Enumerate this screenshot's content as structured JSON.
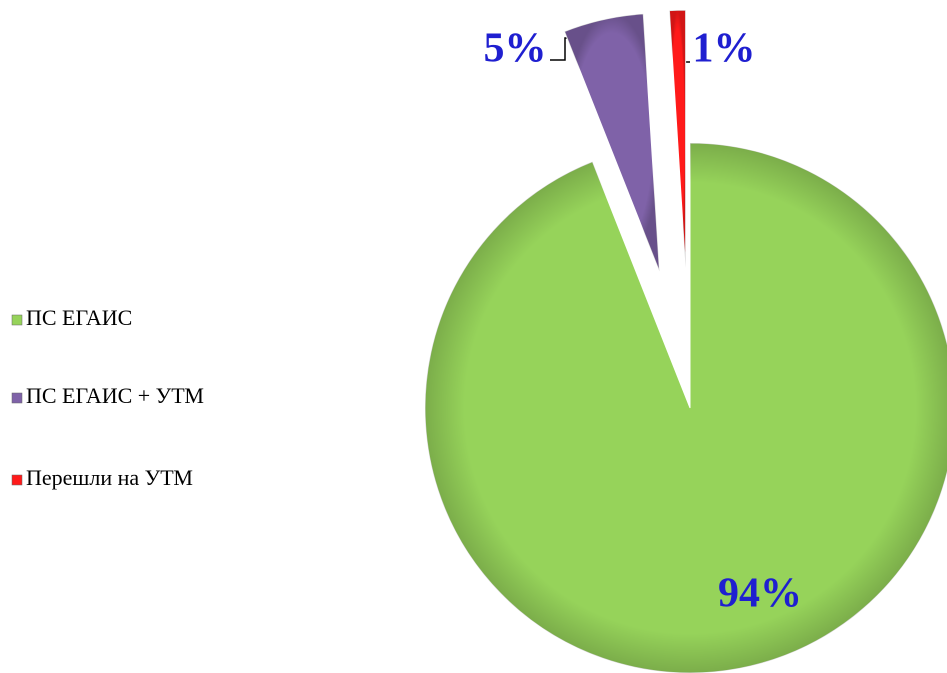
{
  "chart_data": {
    "type": "pie",
    "categories": [
      "ПС ЕГАИС",
      "ПС ЕГАИС + УТМ",
      "Перешли на УТМ"
    ],
    "values": [
      94,
      5,
      1
    ],
    "value_labels": [
      "94%",
      "5%",
      "1%"
    ],
    "colors": [
      "#96d35a",
      "#7f62a8",
      "#ff1a1a"
    ],
    "legend": "left"
  }
}
